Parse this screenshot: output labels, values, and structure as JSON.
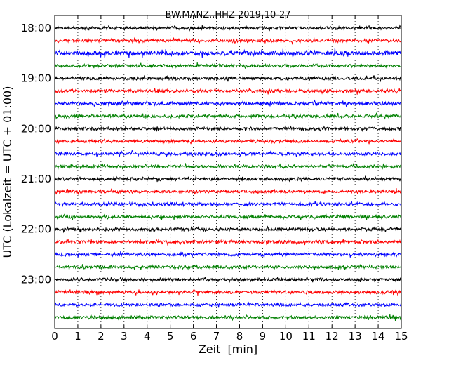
{
  "chart_data": {
    "type": "line",
    "title": "BW.MANZ..HHZ 2019-10-27",
    "xlabel": "Zeit  [min]",
    "ylabel": "UTC (Lokalzeit = UTC + 01:00)",
    "xlim": [
      0,
      15
    ],
    "x_ticks": [
      "0",
      "1",
      "2",
      "3",
      "4",
      "5",
      "6",
      "7",
      "8",
      "9",
      "10",
      "11",
      "12",
      "13",
      "14",
      "15"
    ],
    "y_ticks": [
      "18:00",
      "19:00",
      "20:00",
      "21:00",
      "22:00",
      "23:00"
    ],
    "grid": "vertical dotted at each minute",
    "legend": "none",
    "trace_interval_minutes": 15,
    "trace_colors": [
      "#000000",
      "#ff0000",
      "#0000ff",
      "#008000"
    ],
    "traces": [
      {
        "start": "18:00"
      },
      {
        "start": "18:15"
      },
      {
        "start": "18:30"
      },
      {
        "start": "18:45"
      },
      {
        "start": "19:00"
      },
      {
        "start": "19:15"
      },
      {
        "start": "19:30"
      },
      {
        "start": "19:45"
      },
      {
        "start": "20:00"
      },
      {
        "start": "20:15"
      },
      {
        "start": "20:30"
      },
      {
        "start": "20:45"
      },
      {
        "start": "21:00"
      },
      {
        "start": "21:15"
      },
      {
        "start": "21:30"
      },
      {
        "start": "21:45"
      },
      {
        "start": "22:00"
      },
      {
        "start": "22:15"
      },
      {
        "start": "22:30"
      },
      {
        "start": "22:45"
      },
      {
        "start": "23:00"
      },
      {
        "start": "23:15"
      },
      {
        "start": "23:30"
      },
      {
        "start": "23:45"
      }
    ]
  }
}
